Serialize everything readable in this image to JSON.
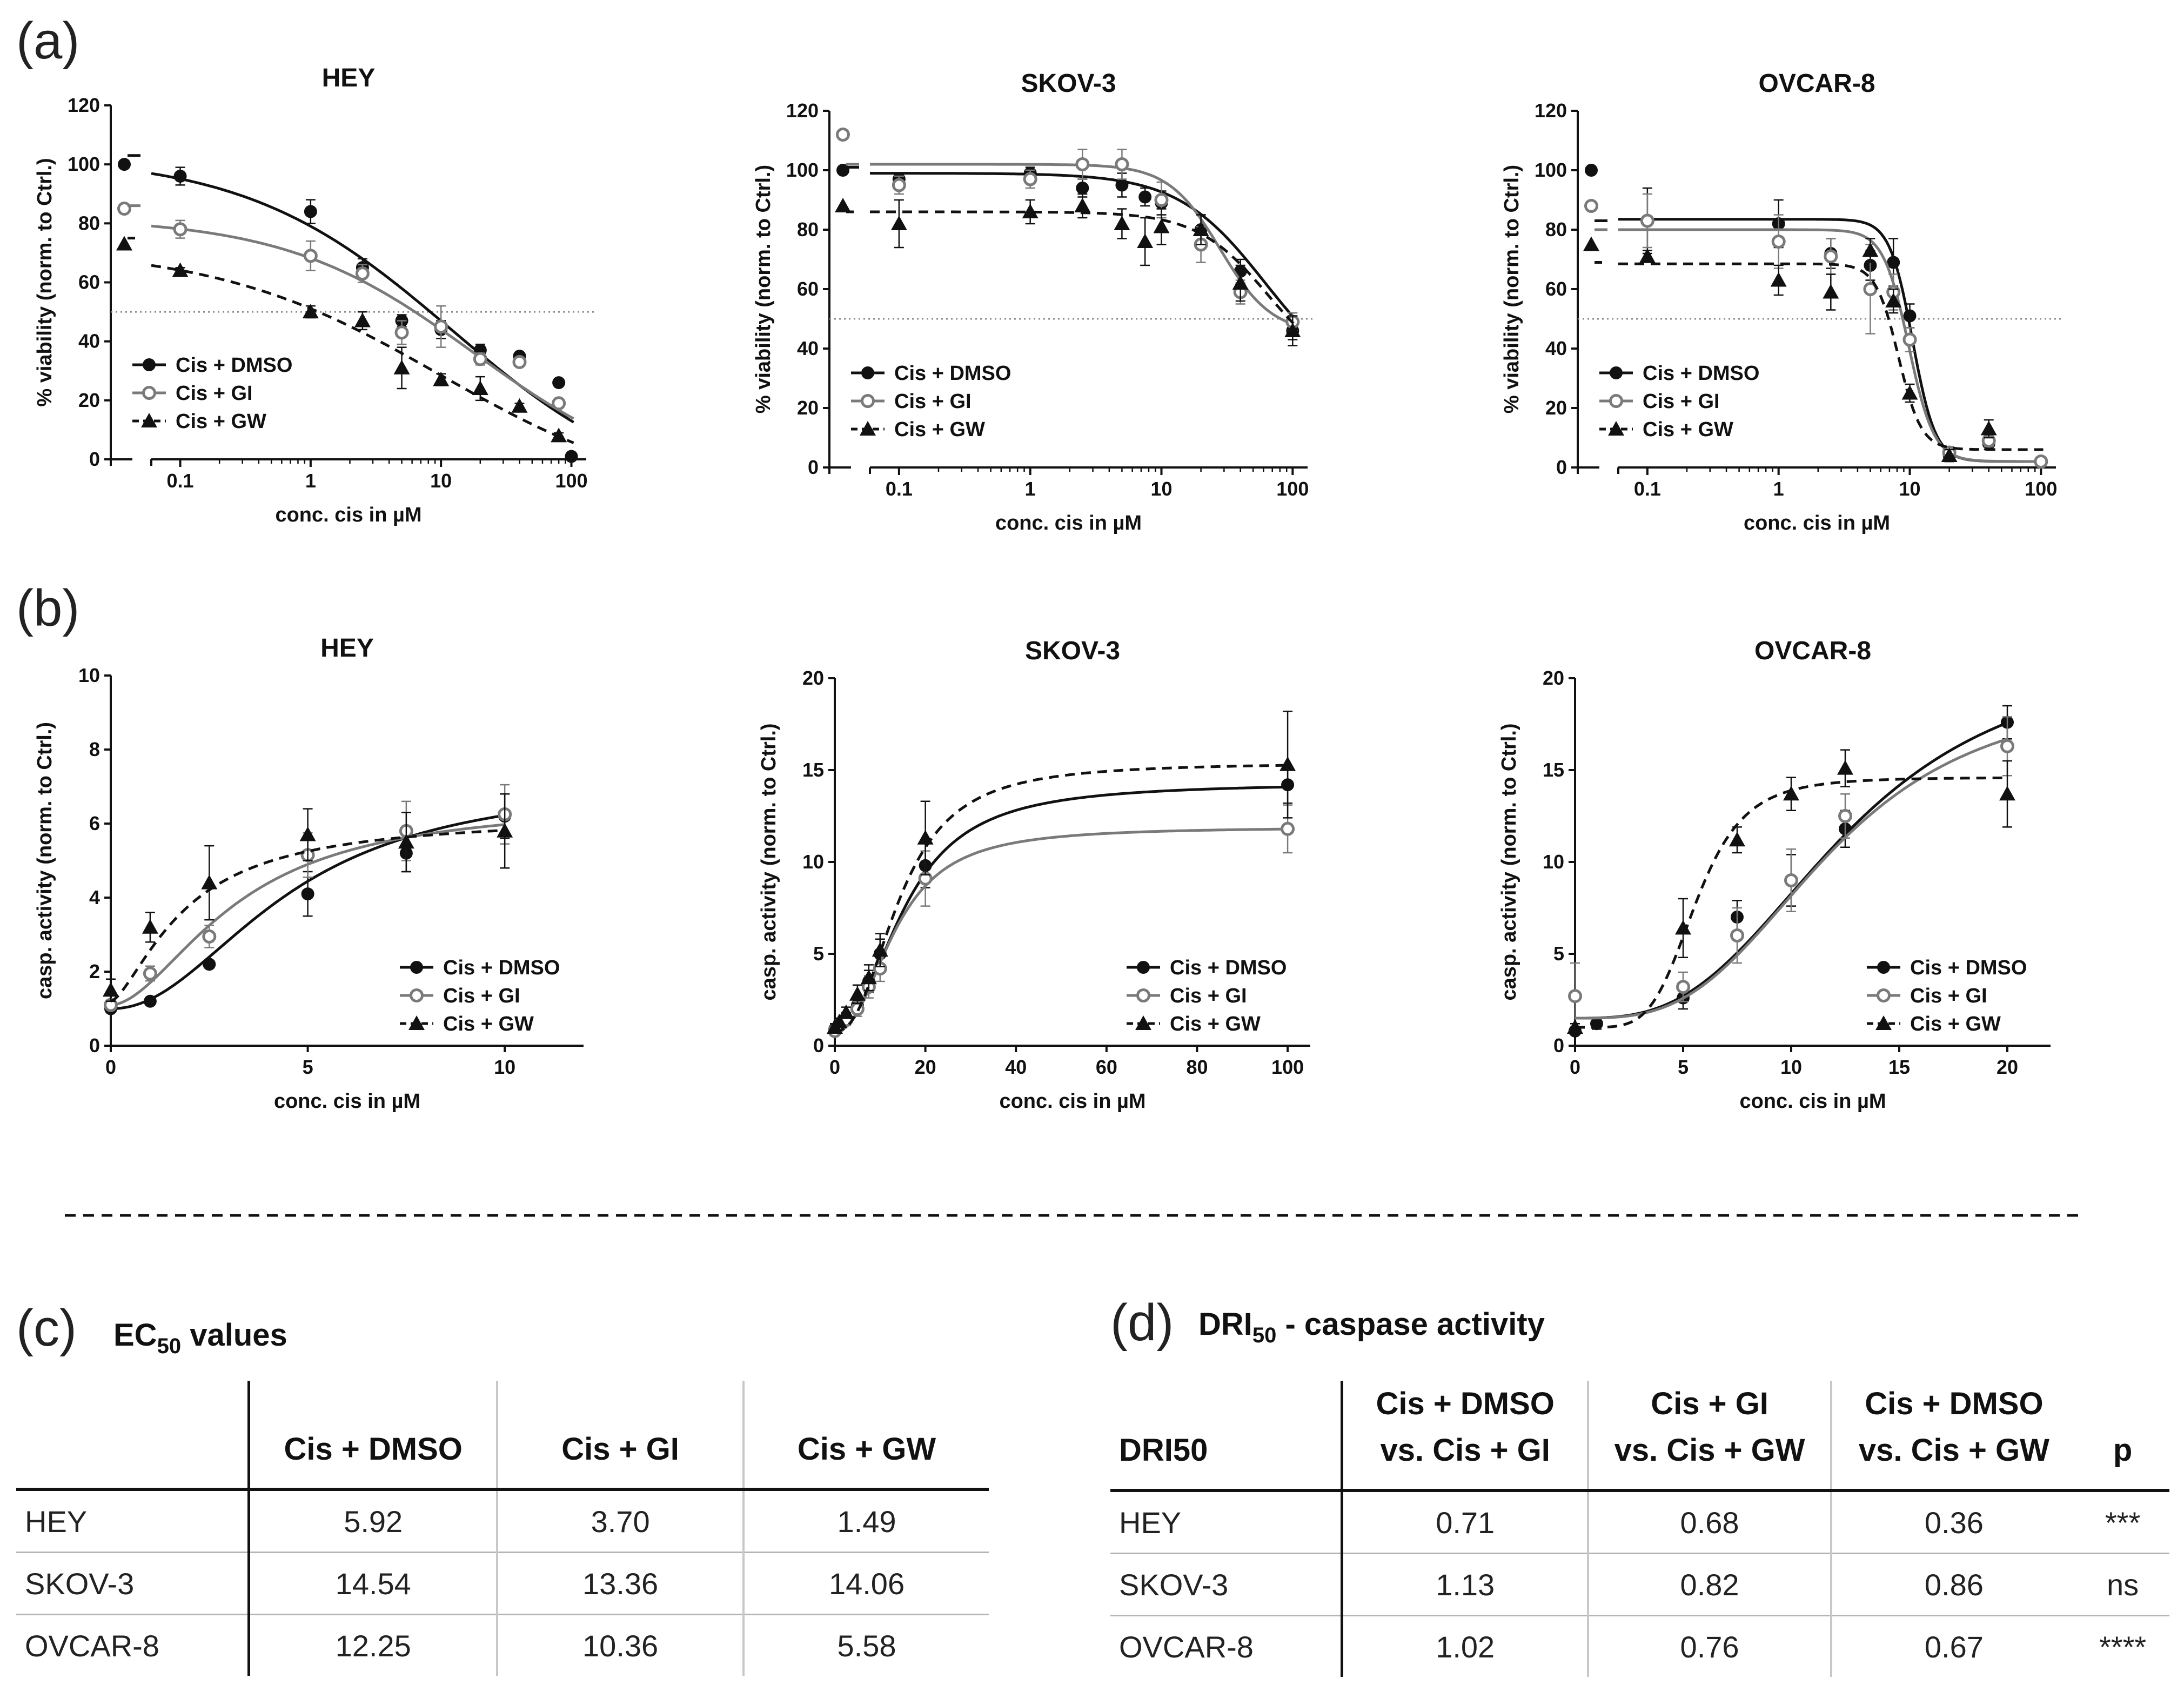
{
  "panel_labels": {
    "a": "(a)",
    "b": "(b)",
    "c": "(c)",
    "d": "(d)"
  },
  "legend_labels": [
    "Cis + DMSO",
    "Cis + GI",
    "Cis + GW"
  ],
  "series_colors": {
    "Cis + DMSO": "#111111",
    "Cis + GI": "#7a7a7a",
    "Cis + GW": "#111111"
  },
  "chart_data": [
    {
      "type": "scatter",
      "panel": "a",
      "title": "HEY",
      "xscale": "log",
      "xlabel": "conc. cis in µM",
      "ylabel": "% viability (norm. to Ctrl.)",
      "xlim": [
        0.03,
        130
      ],
      "ylim": [
        0,
        120
      ],
      "xticks": [
        0.1,
        1,
        10,
        100
      ],
      "xticklabels": [
        "0.1",
        "1",
        "10",
        "100"
      ],
      "yticks": [
        0,
        20,
        40,
        60,
        80,
        100,
        120
      ],
      "hline": 50,
      "legend_position": "bottom-left",
      "series": [
        {
          "name": "Cis + DMSO",
          "marker": "circle-filled",
          "line": "solid",
          "ctrl": 100,
          "top": 103,
          "x": [
            0.1,
            1,
            2.5,
            5,
            10,
            20,
            40,
            80,
            100
          ],
          "y": [
            96,
            84,
            65,
            47,
            44,
            37,
            35,
            26,
            1
          ],
          "err": [
            3,
            4,
            3,
            2,
            3,
            2,
            1,
            1,
            1
          ],
          "curve": {
            "top": 103,
            "bottom": -15,
            "ec50": 12,
            "hill": 0.55
          }
        },
        {
          "name": "Cis + GI",
          "marker": "circle-open",
          "line": "solid",
          "ctrl": 85,
          "top": 86,
          "x": [
            0.1,
            1,
            2.5,
            5,
            10,
            20,
            40,
            80
          ],
          "y": [
            78,
            69,
            63,
            43,
            45,
            34,
            33,
            19
          ],
          "err": [
            3,
            5,
            3,
            4,
            7,
            2,
            1,
            1
          ],
          "curve": {
            "top": 82,
            "bottom": -10,
            "ec50": 18,
            "hill": 0.6
          }
        },
        {
          "name": "Cis + GW",
          "marker": "triangle-filled",
          "line": "dashed",
          "ctrl": 73,
          "top": 75,
          "x": [
            0.1,
            1,
            2.5,
            5,
            10,
            20,
            40,
            80
          ],
          "y": [
            64,
            50,
            47,
            31,
            27,
            24,
            18,
            8
          ],
          "err": [
            1,
            2,
            3,
            7,
            2,
            4,
            1,
            1
          ],
          "curve": {
            "top": 72,
            "bottom": -15,
            "ec50": 10,
            "hill": 0.5
          }
        }
      ]
    },
    {
      "type": "scatter",
      "panel": "a",
      "title": "SKOV-3",
      "xscale": "log",
      "xlabel": "conc. cis in µM",
      "ylabel": "% viability (norm. to Ctrl.)",
      "xlim": [
        0.03,
        130
      ],
      "ylim": [
        0,
        120
      ],
      "xticks": [
        0.1,
        1,
        10,
        100
      ],
      "xticklabels": [
        "0.1",
        "1",
        "10",
        "100"
      ],
      "yticks": [
        0,
        20,
        40,
        60,
        80,
        100,
        120
      ],
      "hline": 50,
      "legend_position": "bottom-left",
      "series": [
        {
          "name": "Cis + DMSO",
          "marker": "circle-filled",
          "line": "solid",
          "ctrl": 100,
          "top": 101,
          "x": [
            0.1,
            1,
            2.5,
            5,
            7.5,
            10,
            20,
            40,
            100
          ],
          "y": [
            97,
            99,
            94,
            95,
            91,
            89,
            80,
            66,
            46
          ],
          "err": [
            2,
            2,
            3,
            4,
            3,
            4,
            5,
            4,
            3
          ],
          "curve": {
            "top": 99,
            "bottom": 25,
            "ec50": 62,
            "hill": 1.3
          }
        },
        {
          "name": "Cis + GI",
          "marker": "circle-open",
          "line": "solid",
          "ctrl": 112,
          "top": 102,
          "x": [
            0.1,
            1,
            2.5,
            5,
            10,
            20,
            40,
            100
          ],
          "y": [
            95,
            97,
            102,
            102,
            90,
            75,
            59,
            49
          ],
          "err": [
            3,
            3,
            5,
            5,
            6,
            6,
            4,
            3
          ],
          "curve": {
            "top": 102,
            "bottom": 45,
            "ec50": 28,
            "hill": 2.2
          }
        },
        {
          "name": "Cis + GW",
          "marker": "triangle-filled",
          "line": "dashed",
          "ctrl": 88,
          "top": 86,
          "x": [
            0.1,
            1,
            2.5,
            5,
            7.5,
            10,
            20,
            40,
            100
          ],
          "y": [
            82,
            86,
            88,
            82,
            76,
            81,
            80,
            62,
            46
          ],
          "err": [
            8,
            4,
            4,
            5,
            8,
            6,
            5,
            6,
            5
          ],
          "curve": {
            "top": 86,
            "bottom": 30,
            "ec50": 65,
            "hill": 1.6
          }
        }
      ]
    },
    {
      "type": "scatter",
      "panel": "a",
      "title": "OVCAR-8",
      "xscale": "log",
      "xlabel": "conc. cis in µM",
      "ylabel": "% viability (norm. to Ctrl.)",
      "xlim": [
        0.03,
        130
      ],
      "ylim": [
        0,
        120
      ],
      "xticks": [
        0.1,
        1,
        10,
        100
      ],
      "xticklabels": [
        "0.1",
        "1",
        "10",
        "100"
      ],
      "yticks": [
        0,
        20,
        40,
        60,
        80,
        100,
        120
      ],
      "hline": 50,
      "legend_position": "bottom-left",
      "series": [
        {
          "name": "Cis + DMSO",
          "marker": "circle-filled",
          "line": "solid",
          "ctrl": 100,
          "top": 83,
          "x": [
            0.1,
            1,
            2.5,
            5,
            7.5,
            10,
            20,
            40,
            100
          ],
          "y": [
            83,
            82,
            72,
            68,
            69,
            51,
            4,
            8,
            2
          ],
          "err": [
            11,
            8,
            5,
            5,
            8,
            4,
            2,
            2,
            1
          ],
          "curve": {
            "top": 83.5,
            "bottom": 2,
            "ec50": 10.5,
            "hill": 5
          }
        },
        {
          "name": "Cis + GI",
          "marker": "circle-open",
          "line": "solid",
          "ctrl": 88,
          "top": 80,
          "x": [
            0.1,
            1,
            2.5,
            5,
            7.5,
            10,
            20,
            40,
            100
          ],
          "y": [
            83,
            76,
            71,
            60,
            59,
            43,
            5,
            9,
            2
          ],
          "err": [
            9,
            9,
            6,
            15,
            6,
            4,
            2,
            2,
            1
          ],
          "curve": {
            "top": 80,
            "bottom": 2,
            "ec50": 9.8,
            "hill": 4.5
          }
        },
        {
          "name": "Cis + GW",
          "marker": "triangle-filled",
          "line": "dashed",
          "ctrl": 75,
          "top": 69,
          "x": [
            0.1,
            1,
            2.5,
            5,
            7.5,
            10,
            20,
            40
          ],
          "y": [
            71,
            63,
            59,
            73,
            56,
            25,
            4,
            13
          ],
          "err": [
            2,
            5,
            6,
            4,
            4,
            3,
            2,
            3
          ],
          "curve": {
            "top": 68.5,
            "bottom": 6,
            "ec50": 8.2,
            "hill": 5
          }
        }
      ]
    },
    {
      "type": "scatter",
      "panel": "b",
      "title": "HEY",
      "xscale": "linear",
      "xlabel": "conc. cis in µM",
      "ylabel": "casp. activity (norm. to Ctrl.)",
      "xlim": [
        0,
        12
      ],
      "ylim": [
        0,
        10
      ],
      "xticks": [
        0,
        5,
        10
      ],
      "yticks": [
        0,
        2,
        4,
        6,
        8,
        10
      ],
      "legend_position": "bottom-right",
      "series": [
        {
          "name": "Cis + DMSO",
          "marker": "circle-filled",
          "line": "solid",
          "x": [
            0,
            1,
            2.5,
            5,
            7.5,
            10
          ],
          "y": [
            1,
            1.2,
            2.2,
            4.1,
            5.2,
            6.2
          ],
          "err": [
            0.1,
            0.1,
            0.1,
            0.6,
            0.5,
            0.6
          ],
          "curve": {
            "type": "hill",
            "bottom": 1,
            "top": 7.2,
            "ec50": 4.5,
            "hill": 2.1
          }
        },
        {
          "name": "Cis + GI",
          "marker": "circle-open",
          "line": "solid",
          "x": [
            0,
            1,
            2.5,
            5,
            7.5,
            10
          ],
          "y": [
            1.1,
            1.95,
            2.95,
            5.15,
            5.8,
            6.25
          ],
          "err": [
            0.1,
            0.2,
            0.3,
            0.6,
            0.8,
            0.8
          ],
          "curve": {
            "type": "hill",
            "bottom": 1.1,
            "top": 6.6,
            "ec50": 3.2,
            "hill": 1.8
          }
        },
        {
          "name": "Cis + GW",
          "marker": "triangle-filled",
          "line": "dashed",
          "x": [
            0,
            1,
            2.5,
            5,
            7.5,
            10
          ],
          "y": [
            1.5,
            3.2,
            4.4,
            5.7,
            5.5,
            5.8
          ],
          "err": [
            0.3,
            0.4,
            1.0,
            0.7,
            0.8,
            1.0
          ],
          "curve": {
            "type": "hill",
            "bottom": 1.2,
            "top": 6.2,
            "ec50": 1.9,
            "hill": 1.5
          }
        }
      ]
    },
    {
      "type": "scatter",
      "panel": "b",
      "title": "SKOV-3",
      "xscale": "linear",
      "xlabel": "conc. cis in µM",
      "ylabel": "casp. activity (norm. to Ctrl.)",
      "xlim": [
        0,
        105
      ],
      "ylim": [
        0,
        20
      ],
      "xticks": [
        0,
        20,
        40,
        60,
        80,
        100
      ],
      "yticks": [
        0,
        5,
        10,
        15,
        20
      ],
      "legend_position": "bottom-right",
      "series": [
        {
          "name": "Cis + DMSO",
          "marker": "circle-filled",
          "line": "solid",
          "x": [
            0,
            1,
            2.5,
            5,
            7.5,
            10,
            20,
            100
          ],
          "y": [
            0.9,
            1.2,
            1.5,
            2.2,
            3.5,
            5,
            9.8,
            14.2
          ],
          "err": [
            0.2,
            0.2,
            0.3,
            0.4,
            0.6,
            0.8,
            1.2,
            1.0
          ],
          "curve": {
            "type": "hill",
            "bottom": 0.8,
            "top": 14.3,
            "ec50": 15.5,
            "hill": 2.2
          }
        },
        {
          "name": "Cis + GI",
          "marker": "circle-open",
          "line": "solid",
          "x": [
            0,
            1,
            2.5,
            5,
            7.5,
            10,
            20,
            100
          ],
          "y": [
            0.8,
            1.1,
            1.4,
            2,
            3.2,
            4.2,
            9.1,
            11.8
          ],
          "err": [
            0.2,
            0.2,
            0.3,
            0.4,
            0.6,
            0.7,
            1.5,
            1.3
          ],
          "curve": {
            "type": "hill",
            "bottom": 0.8,
            "top": 11.9,
            "ec50": 13.5,
            "hill": 2.3
          }
        },
        {
          "name": "Cis + GW",
          "marker": "triangle-filled",
          "line": "dashed",
          "x": [
            0,
            1,
            2.5,
            5,
            7.5,
            10,
            20,
            100
          ],
          "y": [
            1,
            1.3,
            1.8,
            2.8,
            3.7,
            5.2,
            11.3,
            15.3
          ],
          "err": [
            0.2,
            0.2,
            0.3,
            0.5,
            0.7,
            0.9,
            2.0,
            2.9
          ],
          "curve": {
            "type": "hill",
            "bottom": 0.8,
            "top": 15.4,
            "ec50": 14.5,
            "hill": 2.4
          }
        }
      ]
    },
    {
      "type": "scatter",
      "panel": "b",
      "title": "OVCAR-8",
      "xscale": "linear",
      "xlabel": "conc. cis in µM",
      "ylabel": "casp. activity (norm. to Ctrl.)",
      "xlim": [
        0,
        22
      ],
      "ylim": [
        0,
        20
      ],
      "xticks": [
        0,
        5,
        10,
        15,
        20
      ],
      "yticks": [
        0,
        5,
        10,
        15,
        20
      ],
      "legend_position": "bottom-right",
      "series": [
        {
          "name": "Cis + DMSO",
          "marker": "circle-filled",
          "line": "solid",
          "x": [
            0,
            1,
            5,
            7.5,
            10,
            12.5,
            20
          ],
          "y": [
            0.8,
            1.2,
            2.6,
            7,
            9,
            11.8,
            17.6
          ],
          "err": [
            0.2,
            0.3,
            0.6,
            0.9,
            1.4,
            1.0,
            0.9
          ],
          "curve": {
            "type": "hill",
            "bottom": 1.5,
            "top": 21.5,
            "ec50": 12.5,
            "hill": 3.0
          }
        },
        {
          "name": "Cis + GI",
          "marker": "circle-open",
          "line": "solid",
          "x": [
            0,
            5,
            7.5,
            10,
            12.5,
            20
          ],
          "y": [
            2.7,
            3.2,
            6,
            9,
            12.5,
            16.3
          ],
          "err": [
            1.8,
            0.8,
            1.5,
            1.7,
            1.2,
            1.6
          ],
          "curve": {
            "type": "hill",
            "bottom": 1.5,
            "top": 19.5,
            "ec50": 11.8,
            "hill": 3.2
          }
        },
        {
          "name": "Cis + GW",
          "marker": "triangle-filled",
          "line": "dashed",
          "x": [
            0,
            5,
            7.5,
            10,
            12.5,
            20
          ],
          "y": [
            1,
            6.4,
            11.2,
            13.7,
            15.1,
            13.7
          ],
          "err": [
            0.2,
            1.6,
            0.7,
            0.9,
            1.0,
            1.8
          ],
          "curve": {
            "type": "hill",
            "bottom": 1.0,
            "top": 14.6,
            "ec50": 5.6,
            "hill": 5.0
          }
        }
      ]
    },
    {
      "type": "table",
      "panel": "c",
      "title_main": "EC",
      "title_sub": "50",
      "title_rest": " values",
      "columns": [
        "",
        "Cis + DMSO",
        "Cis + GI",
        "Cis + GW"
      ],
      "rows": [
        [
          "HEY",
          "5.92",
          "3.70",
          "1.49"
        ],
        [
          "SKOV-3",
          "14.54",
          "13.36",
          "14.06"
        ],
        [
          "OVCAR-8",
          "12.25",
          "10.36",
          "5.58"
        ]
      ]
    },
    {
      "type": "table",
      "panel": "d",
      "title_main": "DRI",
      "title_sub": "50",
      "title_rest": " - caspase activity",
      "columns": [
        {
          "line1": "DRI50",
          "line2": ""
        },
        {
          "line1": "Cis + DMSO",
          "line2": "vs. Cis + GI"
        },
        {
          "line1": "Cis + GI",
          "line2": "vs. Cis + GW"
        },
        {
          "line1": "Cis + DMSO",
          "line2": "vs. Cis + GW"
        },
        {
          "line1": "p",
          "line2": ""
        }
      ],
      "rows": [
        [
          "HEY",
          "0.71",
          "0.68",
          "0.36",
          "***"
        ],
        [
          "SKOV-3",
          "1.13",
          "0.82",
          "0.86",
          "ns"
        ],
        [
          "OVCAR-8",
          "1.02",
          "0.76",
          "0.67",
          "****"
        ]
      ]
    }
  ]
}
